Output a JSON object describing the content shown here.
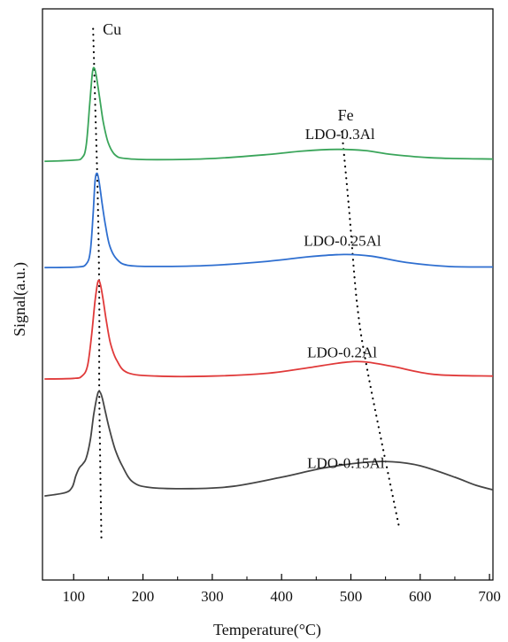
{
  "chart_data": {
    "type": "line",
    "title": "",
    "xlabel": "Temperature(°C)",
    "ylabel": "Signal(a.u.)",
    "xlim": [
      55,
      705
    ],
    "xticks": [
      100,
      200,
      300,
      400,
      500,
      600,
      700
    ],
    "ylim": [
      0,
      1
    ],
    "yticks_shown": false,
    "grid": false,
    "legend": "none",
    "annotations": [
      {
        "label": "Cu",
        "x": 142,
        "y": 0.955
      },
      {
        "label": "Fe",
        "x": 481,
        "y": 0.805
      }
    ],
    "guide_lines": [
      {
        "name": "Cu",
        "points": [
          [
            128,
            0.965
          ],
          [
            131,
            0.836
          ],
          [
            135,
            0.659
          ],
          [
            137,
            0.485
          ],
          [
            137,
            0.326
          ],
          [
            140,
            0.07
          ]
        ]
      },
      {
        "name": "Fe",
        "points": [
          [
            487,
            0.785
          ],
          [
            497,
            0.655
          ],
          [
            509,
            0.483
          ],
          [
            525,
            0.36
          ],
          [
            570,
            0.09
          ]
        ]
      }
    ],
    "series": [
      {
        "name": "LDO-0.3Al",
        "color": "#3aa55a",
        "label_x": 434,
        "label_y": 0.772,
        "points": [
          [
            58,
            0.733
          ],
          [
            100,
            0.735
          ],
          [
            112,
            0.739
          ],
          [
            118,
            0.76
          ],
          [
            123,
            0.83
          ],
          [
            127,
            0.888
          ],
          [
            130,
            0.896
          ],
          [
            133,
            0.88
          ],
          [
            138,
            0.84
          ],
          [
            143,
            0.8
          ],
          [
            150,
            0.765
          ],
          [
            160,
            0.744
          ],
          [
            175,
            0.738
          ],
          [
            220,
            0.736
          ],
          [
            300,
            0.738
          ],
          [
            380,
            0.745
          ],
          [
            430,
            0.751
          ],
          [
            480,
            0.754
          ],
          [
            520,
            0.752
          ],
          [
            560,
            0.745
          ],
          [
            620,
            0.739
          ],
          [
            705,
            0.737
          ]
        ]
      },
      {
        "name": "LDO-0.25Al",
        "color": "#2f6fd0",
        "label_x": 432,
        "label_y": 0.585,
        "points": [
          [
            58,
            0.547
          ],
          [
            105,
            0.548
          ],
          [
            118,
            0.553
          ],
          [
            124,
            0.575
          ],
          [
            128,
            0.64
          ],
          [
            131,
            0.7
          ],
          [
            134,
            0.712
          ],
          [
            137,
            0.695
          ],
          [
            141,
            0.66
          ],
          [
            146,
            0.62
          ],
          [
            152,
            0.585
          ],
          [
            162,
            0.562
          ],
          [
            178,
            0.551
          ],
          [
            220,
            0.549
          ],
          [
            300,
            0.551
          ],
          [
            380,
            0.558
          ],
          [
            440,
            0.566
          ],
          [
            490,
            0.57
          ],
          [
            530,
            0.567
          ],
          [
            580,
            0.556
          ],
          [
            640,
            0.549
          ],
          [
            705,
            0.548
          ]
        ]
      },
      {
        "name": "LDO-0.2Al",
        "color": "#e03a3a",
        "label_x": 437,
        "label_y": 0.39,
        "points": [
          [
            58,
            0.352
          ],
          [
            100,
            0.353
          ],
          [
            112,
            0.357
          ],
          [
            120,
            0.375
          ],
          [
            126,
            0.43
          ],
          [
            131,
            0.49
          ],
          [
            135,
            0.522
          ],
          [
            138,
            0.52
          ],
          [
            142,
            0.495
          ],
          [
            147,
            0.455
          ],
          [
            153,
            0.415
          ],
          [
            162,
            0.385
          ],
          [
            178,
            0.363
          ],
          [
            220,
            0.357
          ],
          [
            300,
            0.357
          ],
          [
            380,
            0.362
          ],
          [
            440,
            0.372
          ],
          [
            490,
            0.381
          ],
          [
            520,
            0.382
          ],
          [
            560,
            0.374
          ],
          [
            620,
            0.36
          ],
          [
            705,
            0.357
          ]
        ]
      },
      {
        "name": "LDO-0.15Al",
        "color": "#454545",
        "label_x": 437,
        "label_y": 0.196,
        "points": [
          [
            58,
            0.147
          ],
          [
            88,
            0.153
          ],
          [
            98,
            0.163
          ],
          [
            103,
            0.182
          ],
          [
            108,
            0.196
          ],
          [
            113,
            0.203
          ],
          [
            118,
            0.213
          ],
          [
            124,
            0.245
          ],
          [
            129,
            0.29
          ],
          [
            134,
            0.323
          ],
          [
            137,
            0.33
          ],
          [
            141,
            0.32
          ],
          [
            146,
            0.293
          ],
          [
            152,
            0.262
          ],
          [
            160,
            0.228
          ],
          [
            170,
            0.2
          ],
          [
            185,
            0.172
          ],
          [
            210,
            0.162
          ],
          [
            270,
            0.16
          ],
          [
            330,
            0.164
          ],
          [
            400,
            0.18
          ],
          [
            460,
            0.196
          ],
          [
            520,
            0.206
          ],
          [
            560,
            0.207
          ],
          [
            600,
            0.2
          ],
          [
            650,
            0.18
          ],
          [
            680,
            0.166
          ],
          [
            705,
            0.158
          ]
        ]
      }
    ]
  }
}
